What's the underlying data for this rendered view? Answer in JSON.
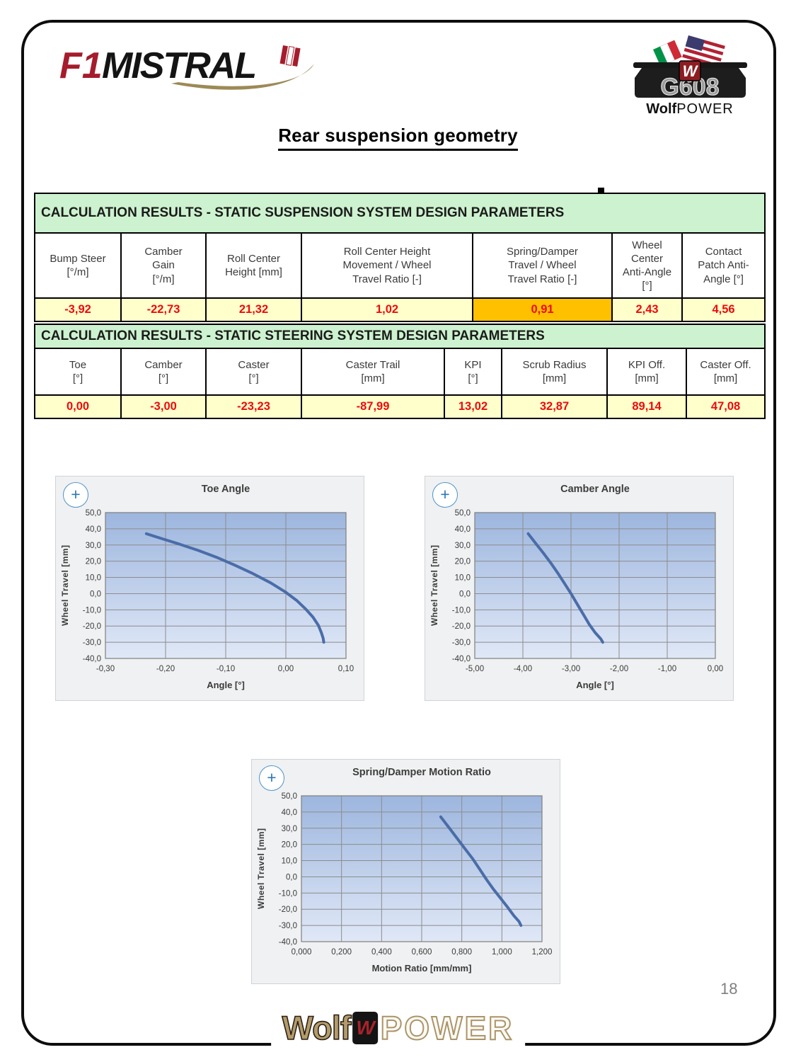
{
  "page": {
    "title": "Rear suspension geometry",
    "number": "18"
  },
  "logos": {
    "f1mistral": {
      "part1": "F1",
      "part2": "MISTRAL"
    },
    "g608": {
      "model": "G608",
      "brand_bold": "Wolf",
      "brand_rest": "POWER"
    },
    "footer": {
      "bold": "Wolf",
      "rest": "POWER",
      "emblem": "W"
    }
  },
  "ui": {
    "zoom_button": "+"
  },
  "colors": {
    "header_green": "#cdf2cf",
    "row_yellow": "#ffffcc",
    "highlight_orange": "#ffc000",
    "value_red": "#ee0b0b",
    "chart_line": "#4a6da8",
    "plot_gradient_top": "#9db6de",
    "plot_gradient_bottom": "#e0e8f7"
  },
  "tables": [
    {
      "caption": "CALCULATION RESULTS - STATIC SUSPENSION SYSTEM DESIGN PARAMETERS",
      "columns": [
        "Bump Steer\n[°/m]",
        "Camber\nGain\n[°/m]",
        "Roll Center\nHeight [mm]",
        "Roll Center Height\nMovement / Wheel\nTravel Ratio [-]",
        "Spring/Damper\nTravel / Wheel\nTravel Ratio [-]",
        "Wheel\nCenter\nAnti-Angle\n[°]",
        "Contact\nPatch Anti-\nAngle [°]"
      ],
      "values": [
        "-3,92",
        "-22,73",
        "21,32",
        "1,02",
        "0,91",
        "2,43",
        "4,56"
      ],
      "highlighted_value": "0,91"
    },
    {
      "caption": "CALCULATION RESULTS - STATIC STEERING SYSTEM DESIGN PARAMETERS",
      "columns": [
        "Toe\n[°]",
        "Camber\n[°]",
        "Caster\n[°]",
        "Caster Trail\n[mm]",
        "KPI\n[°]",
        "Scrub Radius\n[mm]",
        "KPI Off.\n[mm]",
        "Caster Off.\n[mm]"
      ],
      "values": [
        "0,00",
        "-3,00",
        "-23,23",
        "-87,99",
        "13,02",
        "32,87",
        "89,14",
        "47,08"
      ]
    }
  ],
  "chart_data": [
    {
      "type": "line",
      "title": "Toe Angle",
      "xlabel": "Angle [°]",
      "ylabel": "Wheel Travel [mm]",
      "xlim": [
        -0.3,
        0.1
      ],
      "ylim": [
        -40,
        50
      ],
      "grid": true,
      "legend": "none",
      "xticks": {
        "values": [
          -0.3,
          -0.2,
          -0.1,
          0.0,
          0.1
        ],
        "labels": [
          "-0,30",
          "-0,20",
          "-0,10",
          "0,00",
          "0,10"
        ]
      },
      "yticks": {
        "values": [
          50,
          40,
          30,
          20,
          10,
          0,
          -10,
          -20,
          -30,
          -40
        ],
        "labels": [
          "50,0",
          "40,0",
          "30,0",
          "20,0",
          "10,0",
          "0,0",
          "-10,0",
          "-20,0",
          "-30,0",
          "-40,0"
        ]
      },
      "series": [
        {
          "name": "toe-angle-vs-wheel-travel",
          "points": [
            [
              -0.232,
              37
            ],
            [
              -0.205,
              33.8
            ],
            [
              -0.175,
              30.3
            ],
            [
              -0.145,
              26.6
            ],
            [
              -0.115,
              22.4
            ],
            [
              -0.085,
              17.6
            ],
            [
              -0.055,
              12.4
            ],
            [
              -0.025,
              6.6
            ],
            [
              0.0,
              0.8
            ],
            [
              0.018,
              -4.2
            ],
            [
              0.033,
              -9.5
            ],
            [
              0.045,
              -14.5
            ],
            [
              0.054,
              -19.5
            ],
            [
              0.059,
              -24
            ],
            [
              0.062,
              -27.5
            ],
            [
              0.063,
              -30
            ]
          ]
        }
      ]
    },
    {
      "type": "line",
      "title": "Camber Angle",
      "xlabel": "Angle [°]",
      "ylabel": "Wheel Travel [mm]",
      "xlim": [
        -5.0,
        0.0
      ],
      "ylim": [
        -40,
        50
      ],
      "grid": true,
      "legend": "none",
      "xticks": {
        "values": [
          -5.0,
          -4.0,
          -3.0,
          -2.0,
          -1.0,
          0.0
        ],
        "labels": [
          "-5,00",
          "-4,00",
          "-3,00",
          "-2,00",
          "-1,00",
          "0,00"
        ]
      },
      "yticks": {
        "values": [
          50,
          40,
          30,
          20,
          10,
          0,
          -10,
          -20,
          -30,
          -40
        ],
        "labels": [
          "50,0",
          "40,0",
          "30,0",
          "20,0",
          "10,0",
          "0,0",
          "-10,0",
          "-20,0",
          "-30,0",
          "-40,0"
        ]
      },
      "series": [
        {
          "name": "camber-angle-vs-wheel-travel",
          "points": [
            [
              -3.89,
              37
            ],
            [
              -3.72,
              30.5
            ],
            [
              -3.56,
              24.5
            ],
            [
              -3.41,
              18.5
            ],
            [
              -3.27,
              12.5
            ],
            [
              -3.14,
              6.5
            ],
            [
              -3.0,
              0
            ],
            [
              -2.87,
              -6.5
            ],
            [
              -2.74,
              -13
            ],
            [
              -2.62,
              -19
            ],
            [
              -2.5,
              -24
            ],
            [
              -2.38,
              -28
            ],
            [
              -2.34,
              -30
            ]
          ]
        }
      ]
    },
    {
      "type": "line",
      "title": "Spring/Damper Motion Ratio",
      "xlabel": "Motion Ratio [mm/mm]",
      "ylabel": "Wheel Travel [mm]",
      "xlim": [
        0.0,
        1.2
      ],
      "ylim": [
        -40,
        50
      ],
      "grid": true,
      "legend": "none",
      "xticks": {
        "values": [
          0.0,
          0.2,
          0.4,
          0.6,
          0.8,
          1.0,
          1.2
        ],
        "labels": [
          "0,000",
          "0,200",
          "0,400",
          "0,600",
          "0,800",
          "1,000",
          "1,200"
        ]
      },
      "yticks": {
        "values": [
          50,
          40,
          30,
          20,
          10,
          0,
          -10,
          -20,
          -30,
          -40
        ],
        "labels": [
          "50,0",
          "40,0",
          "30,0",
          "20,0",
          "10,0",
          "0,0",
          "-10,0",
          "-20,0",
          "-30,0",
          "-40,0"
        ]
      },
      "series": [
        {
          "name": "motion-ratio-vs-wheel-travel",
          "points": [
            [
              0.695,
              37
            ],
            [
              0.735,
              30.5
            ],
            [
              0.775,
              24
            ],
            [
              0.815,
              17.5
            ],
            [
              0.855,
              11
            ],
            [
              0.89,
              4.5
            ],
            [
              0.925,
              -2
            ],
            [
              0.96,
              -8
            ],
            [
              0.995,
              -13.5
            ],
            [
              1.03,
              -19
            ],
            [
              1.06,
              -24
            ],
            [
              1.085,
              -27.5
            ],
            [
              1.095,
              -30
            ]
          ]
        }
      ]
    }
  ]
}
